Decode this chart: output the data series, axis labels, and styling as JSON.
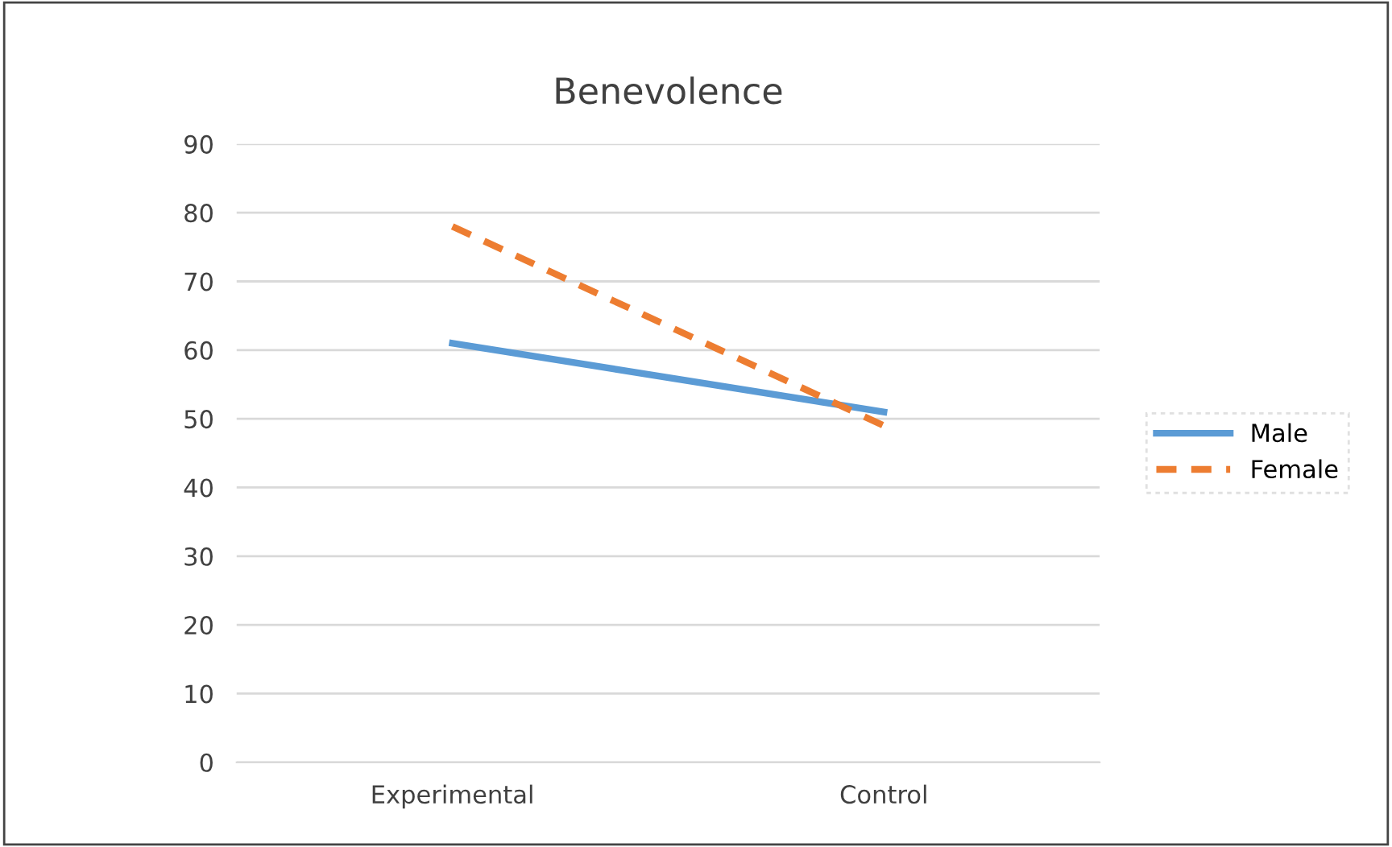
{
  "chart_data": {
    "type": "line",
    "title": "Benevolence",
    "categories": [
      "Experimental",
      "Control"
    ],
    "series": [
      {
        "name": "Male",
        "color": "#5b9bd5",
        "values": [
          61,
          51
        ],
        "line_style": "solid"
      },
      {
        "name": "Female",
        "color": "#ed7d31",
        "values": [
          78,
          49
        ],
        "line_style": "dashed"
      }
    ],
    "ylim": [
      0,
      90
    ],
    "yticks": [
      0,
      10,
      20,
      30,
      40,
      50,
      60,
      70,
      80,
      90
    ],
    "grid": "y",
    "legend": "right",
    "marker": "none"
  }
}
